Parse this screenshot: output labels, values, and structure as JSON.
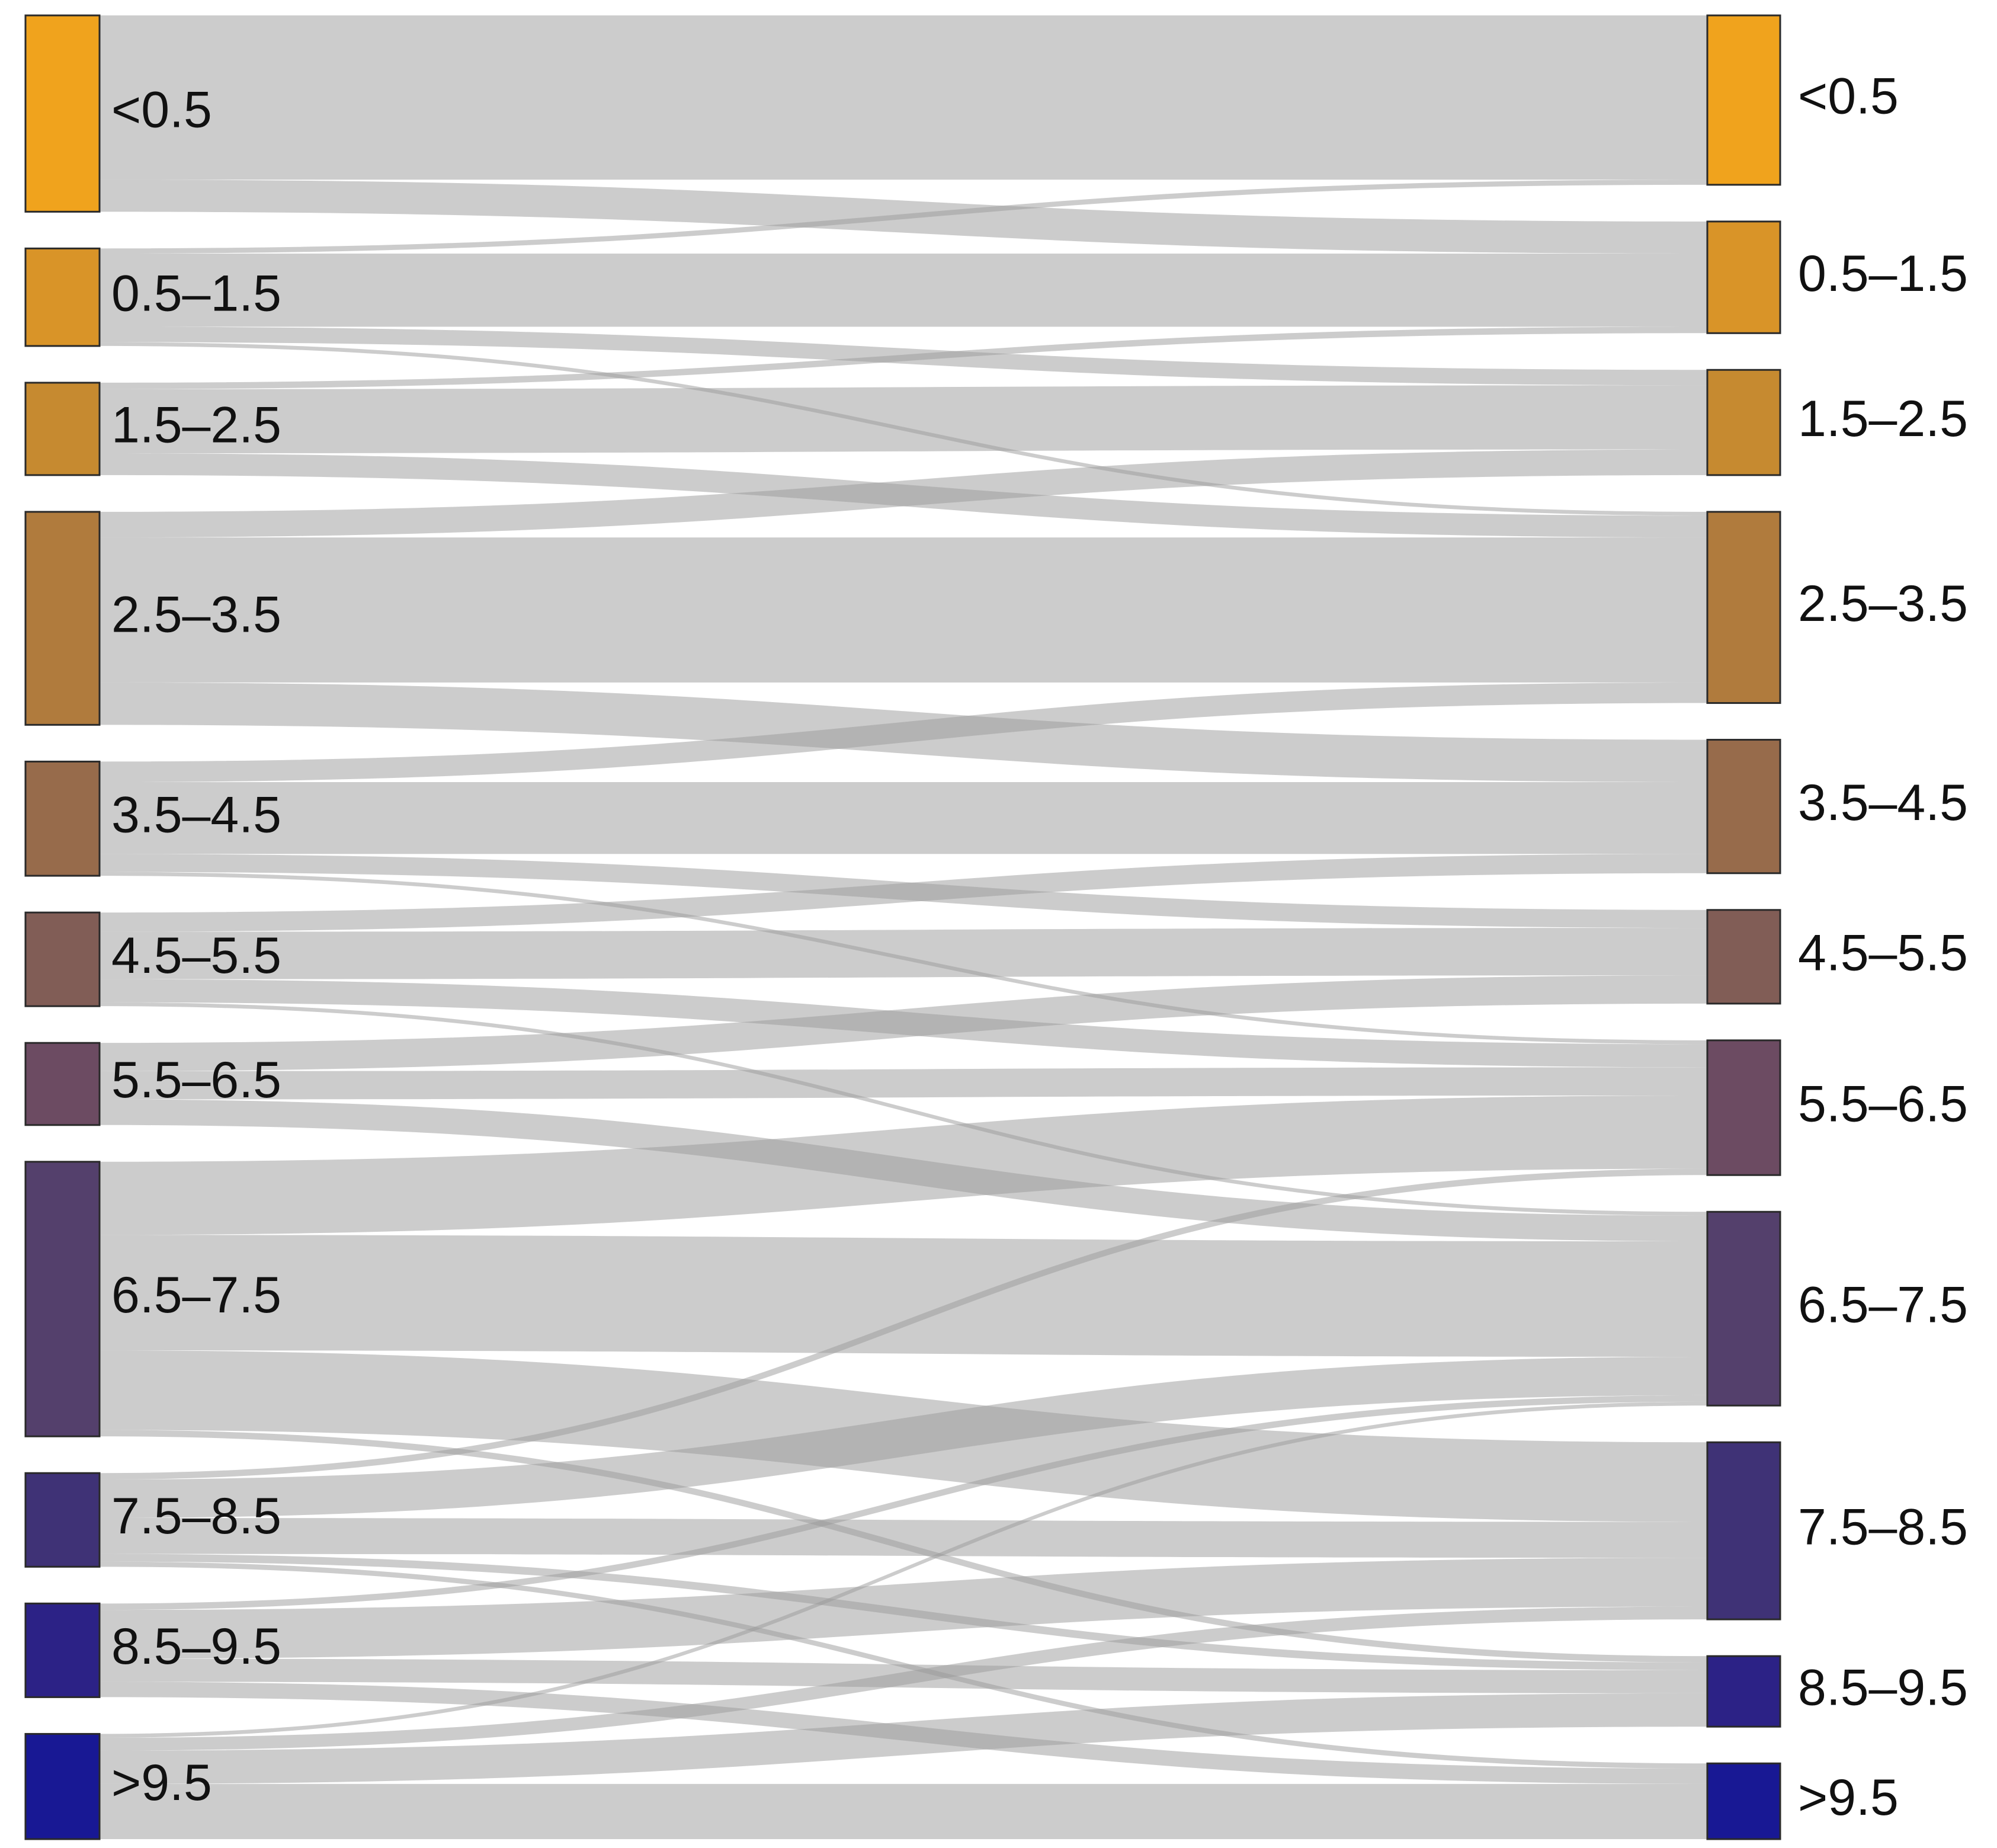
{
  "chart_data": {
    "type": "sankey",
    "categories": [
      "<0.5",
      "0.5–1.5",
      "1.5–2.5",
      "2.5–3.5",
      "3.5–4.5",
      "4.5–5.5",
      "5.5–6.5",
      "6.5–7.5",
      "7.5–8.5",
      "8.5–9.5",
      ">9.5"
    ],
    "colors": [
      "#F0A31D",
      "#D99428",
      "#C68A30",
      "#B07B3D",
      "#976B4B",
      "#815D56",
      "#6C4B62",
      "#54406C",
      "#3F3276",
      "#2C2286",
      "#181894"
    ],
    "values": [
      [
        128,
        25,
        null,
        null,
        null,
        null,
        null,
        null,
        null,
        null,
        null
      ],
      [
        4,
        57,
        12,
        3,
        null,
        null,
        null,
        null,
        null,
        null,
        null
      ],
      [
        null,
        5,
        50,
        17,
        null,
        null,
        null,
        null,
        null,
        null,
        null
      ],
      [
        null,
        null,
        20,
        113,
        33,
        null,
        null,
        null,
        null,
        null,
        null
      ],
      [
        null,
        null,
        null,
        16,
        56,
        14,
        3,
        null,
        null,
        null,
        null
      ],
      [
        null,
        null,
        null,
        null,
        15,
        37,
        18,
        3,
        null,
        null,
        null
      ],
      [
        null,
        null,
        null,
        null,
        null,
        22,
        22,
        20,
        null,
        null,
        null
      ],
      [
        null,
        null,
        null,
        null,
        null,
        null,
        57,
        90,
        62,
        5,
        null
      ],
      [
        null,
        null,
        null,
        null,
        null,
        null,
        5,
        30,
        28,
        6,
        4
      ],
      [
        null,
        null,
        null,
        null,
        null,
        null,
        null,
        5,
        38,
        18,
        12
      ],
      [
        null,
        null,
        null,
        null,
        null,
        null,
        null,
        3,
        10,
        26,
        43
      ]
    ]
  }
}
